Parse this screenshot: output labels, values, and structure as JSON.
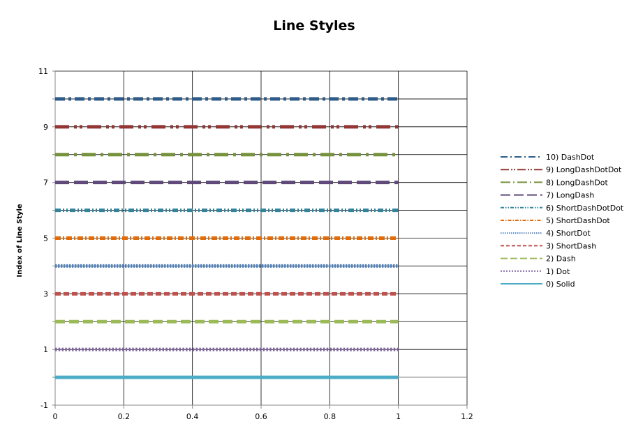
{
  "chart_data": {
    "type": "line",
    "title": "Line Styles",
    "xlabel": "",
    "ylabel": "Index of Line Style",
    "xlim": [
      0,
      1.2
    ],
    "ylim": [
      -1,
      11
    ],
    "xticks": [
      0,
      0.2,
      0.4,
      0.6,
      0.8,
      1,
      1.2
    ],
    "xtick_labels": [
      "0",
      "0.2",
      "0.4",
      "0.6",
      "0.8",
      "1",
      "1.2"
    ],
    "yticks": [
      -1,
      1,
      3,
      5,
      7,
      9,
      11
    ],
    "ytick_labels": [
      "-1",
      "1",
      "3",
      "5",
      "7",
      "9",
      "11"
    ],
    "grid": true,
    "legend_position": "right",
    "series": [
      {
        "name": "10) DashDot",
        "style": "DashDot",
        "color": "#2E5C8A",
        "x": [
          0,
          1
        ],
        "y": [
          10,
          10
        ]
      },
      {
        "name": "9) LongDashDotDot",
        "style": "LongDashDotDot",
        "color": "#943634",
        "x": [
          0,
          1
        ],
        "y": [
          9,
          9
        ]
      },
      {
        "name": "8) LongDashDot",
        "style": "LongDashDot",
        "color": "#76923C",
        "x": [
          0,
          1
        ],
        "y": [
          8,
          8
        ]
      },
      {
        "name": "7) LongDash",
        "style": "LongDash",
        "color": "#5F497A",
        "x": [
          0,
          1
        ],
        "y": [
          7,
          7
        ]
      },
      {
        "name": "6) ShortDashDotDot",
        "style": "ShortDashDotDot",
        "color": "#31849B",
        "x": [
          0,
          1
        ],
        "y": [
          6,
          6
        ]
      },
      {
        "name": "5) ShortDashDot",
        "style": "ShortDashDot",
        "color": "#E36C09",
        "x": [
          0,
          1
        ],
        "y": [
          5,
          5
        ]
      },
      {
        "name": "4) ShortDot",
        "style": "ShortDot",
        "color": "#4F81BD",
        "x": [
          0,
          1
        ],
        "y": [
          4,
          4
        ]
      },
      {
        "name": "3) ShortDash",
        "style": "ShortDash",
        "color": "#C0504D",
        "x": [
          0,
          1
        ],
        "y": [
          3,
          3
        ]
      },
      {
        "name": "2) Dash",
        "style": "Dash",
        "color": "#9BBB59",
        "x": [
          0,
          1
        ],
        "y": [
          2,
          2
        ]
      },
      {
        "name": "1) Dot",
        "style": "Dot",
        "color": "#8064A2",
        "x": [
          0,
          1
        ],
        "y": [
          1,
          1
        ]
      },
      {
        "name": "0) Solid",
        "style": "Solid",
        "color": "#4BACC6",
        "x": [
          0,
          1
        ],
        "y": [
          0,
          0
        ]
      }
    ]
  }
}
